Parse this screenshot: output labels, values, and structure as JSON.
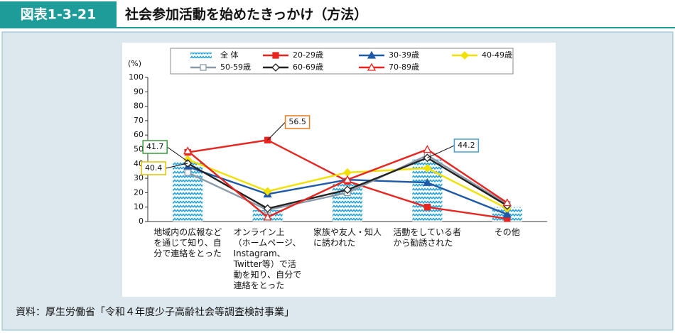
{
  "header": {
    "label": "図表1-3-21",
    "title": "社会参加活動を始めたきっかけ（方法）"
  },
  "chart_data": {
    "type": "line",
    "y_label": "(%)",
    "categories": [
      "地域内の広報など\nを通じて知り、自\n分で連絡をとった",
      "オンライン上\n（ホームページ、\nInstagram、\nTwitter等）で活\n動を知り、自分で\n連絡をとった",
      "家族や友人・知人\nに誘われた",
      "活動をしている者\nから勧誘された",
      "その他"
    ],
    "ylim": [
      0,
      100
    ],
    "yticks": [
      0,
      10,
      20,
      30,
      40,
      50,
      60,
      70,
      80,
      90,
      100
    ],
    "grid": false,
    "series": [
      {
        "name": "全 体",
        "type": "bar",
        "color": "#29a3d6",
        "marker": "wave",
        "values": [
          41.7,
          8,
          26,
          43,
          10
        ],
        "value_labels": [
          "41.7",
          null,
          null,
          null,
          null
        ]
      },
      {
        "name": "20-29歳",
        "type": "line",
        "color": "#e8251f",
        "marker": "square",
        "values": [
          48,
          56.5,
          28,
          10,
          2
        ],
        "value_labels": [
          null,
          "56.5",
          null,
          null,
          null
        ]
      },
      {
        "name": "30-39歳",
        "type": "line",
        "color": "#1f5aa8",
        "marker": "triangle",
        "values": [
          38,
          19,
          29,
          27,
          5
        ]
      },
      {
        "name": "40-49歳",
        "type": "line",
        "color": "#f2e000",
        "marker": "diamond",
        "values": [
          43,
          21,
          34,
          37,
          9
        ]
      },
      {
        "name": "50-59歳",
        "type": "line",
        "color": "#8c9aa8",
        "marker": "hollow-square",
        "values": [
          34,
          8,
          20,
          46,
          12
        ]
      },
      {
        "name": "60-69歳",
        "type": "line",
        "color": "#222222",
        "marker": "hollow-diamond",
        "values": [
          40.4,
          9,
          22,
          44.2,
          11
        ],
        "value_labels": [
          "40.4",
          null,
          null,
          "44.2",
          null
        ]
      },
      {
        "name": "70-89歳",
        "type": "line",
        "color": "#e8251f",
        "marker": "hollow-triangle",
        "values": [
          49,
          3,
          29,
          50,
          13
        ]
      }
    ]
  },
  "source": "資料：厚生労働省「令和４年度少子高齢社会等調査検討事業」"
}
